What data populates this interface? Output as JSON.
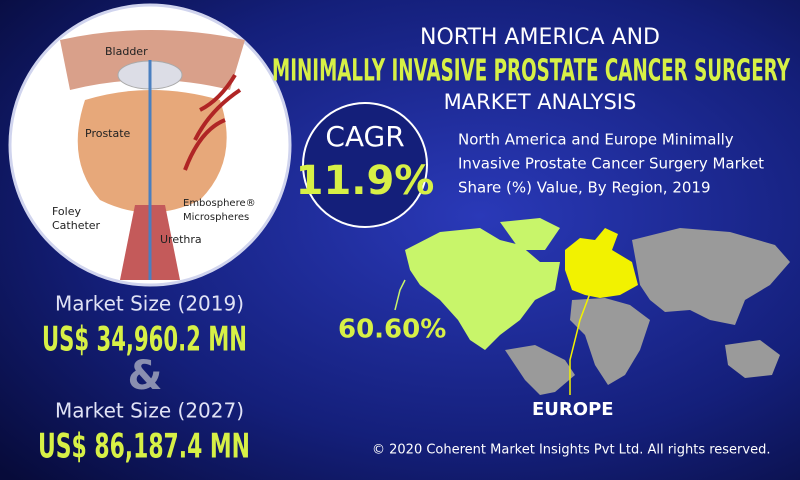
{
  "header": {
    "line1": "NORTH AMERICA AND",
    "title": "MINIMALLY INVASIVE PROSTATE CANCER SURGERY",
    "line3": "MARKET ANALYSIS"
  },
  "illustration": {
    "bladder": "Bladder",
    "prostate": "Prostate",
    "embosphere": "Embosphere®",
    "microspheres": "Microspheres",
    "foley": "Foley",
    "catheter": "Catheter",
    "urethra": "Urethra"
  },
  "cagr": {
    "label": "CAGR",
    "value": "11.9%"
  },
  "description": [
    "North America and Europe Minimally",
    "Invasive Prostate Cancer Surgery Market",
    "Share (%) Value, By Region, 2019"
  ],
  "market": [
    {
      "label": "Market Size (2019)",
      "value": "US$ 34,960.2 MN"
    },
    {
      "label": "Market Size (2027)",
      "value": "US$ 86,187.4 MN"
    }
  ],
  "separator": "&",
  "map": {
    "north_america_share": "60.60%",
    "europe_label": "EUROPE"
  },
  "footer": "© 2020 Coherent Market Insights Pvt Ltd. All rights reserved."
}
